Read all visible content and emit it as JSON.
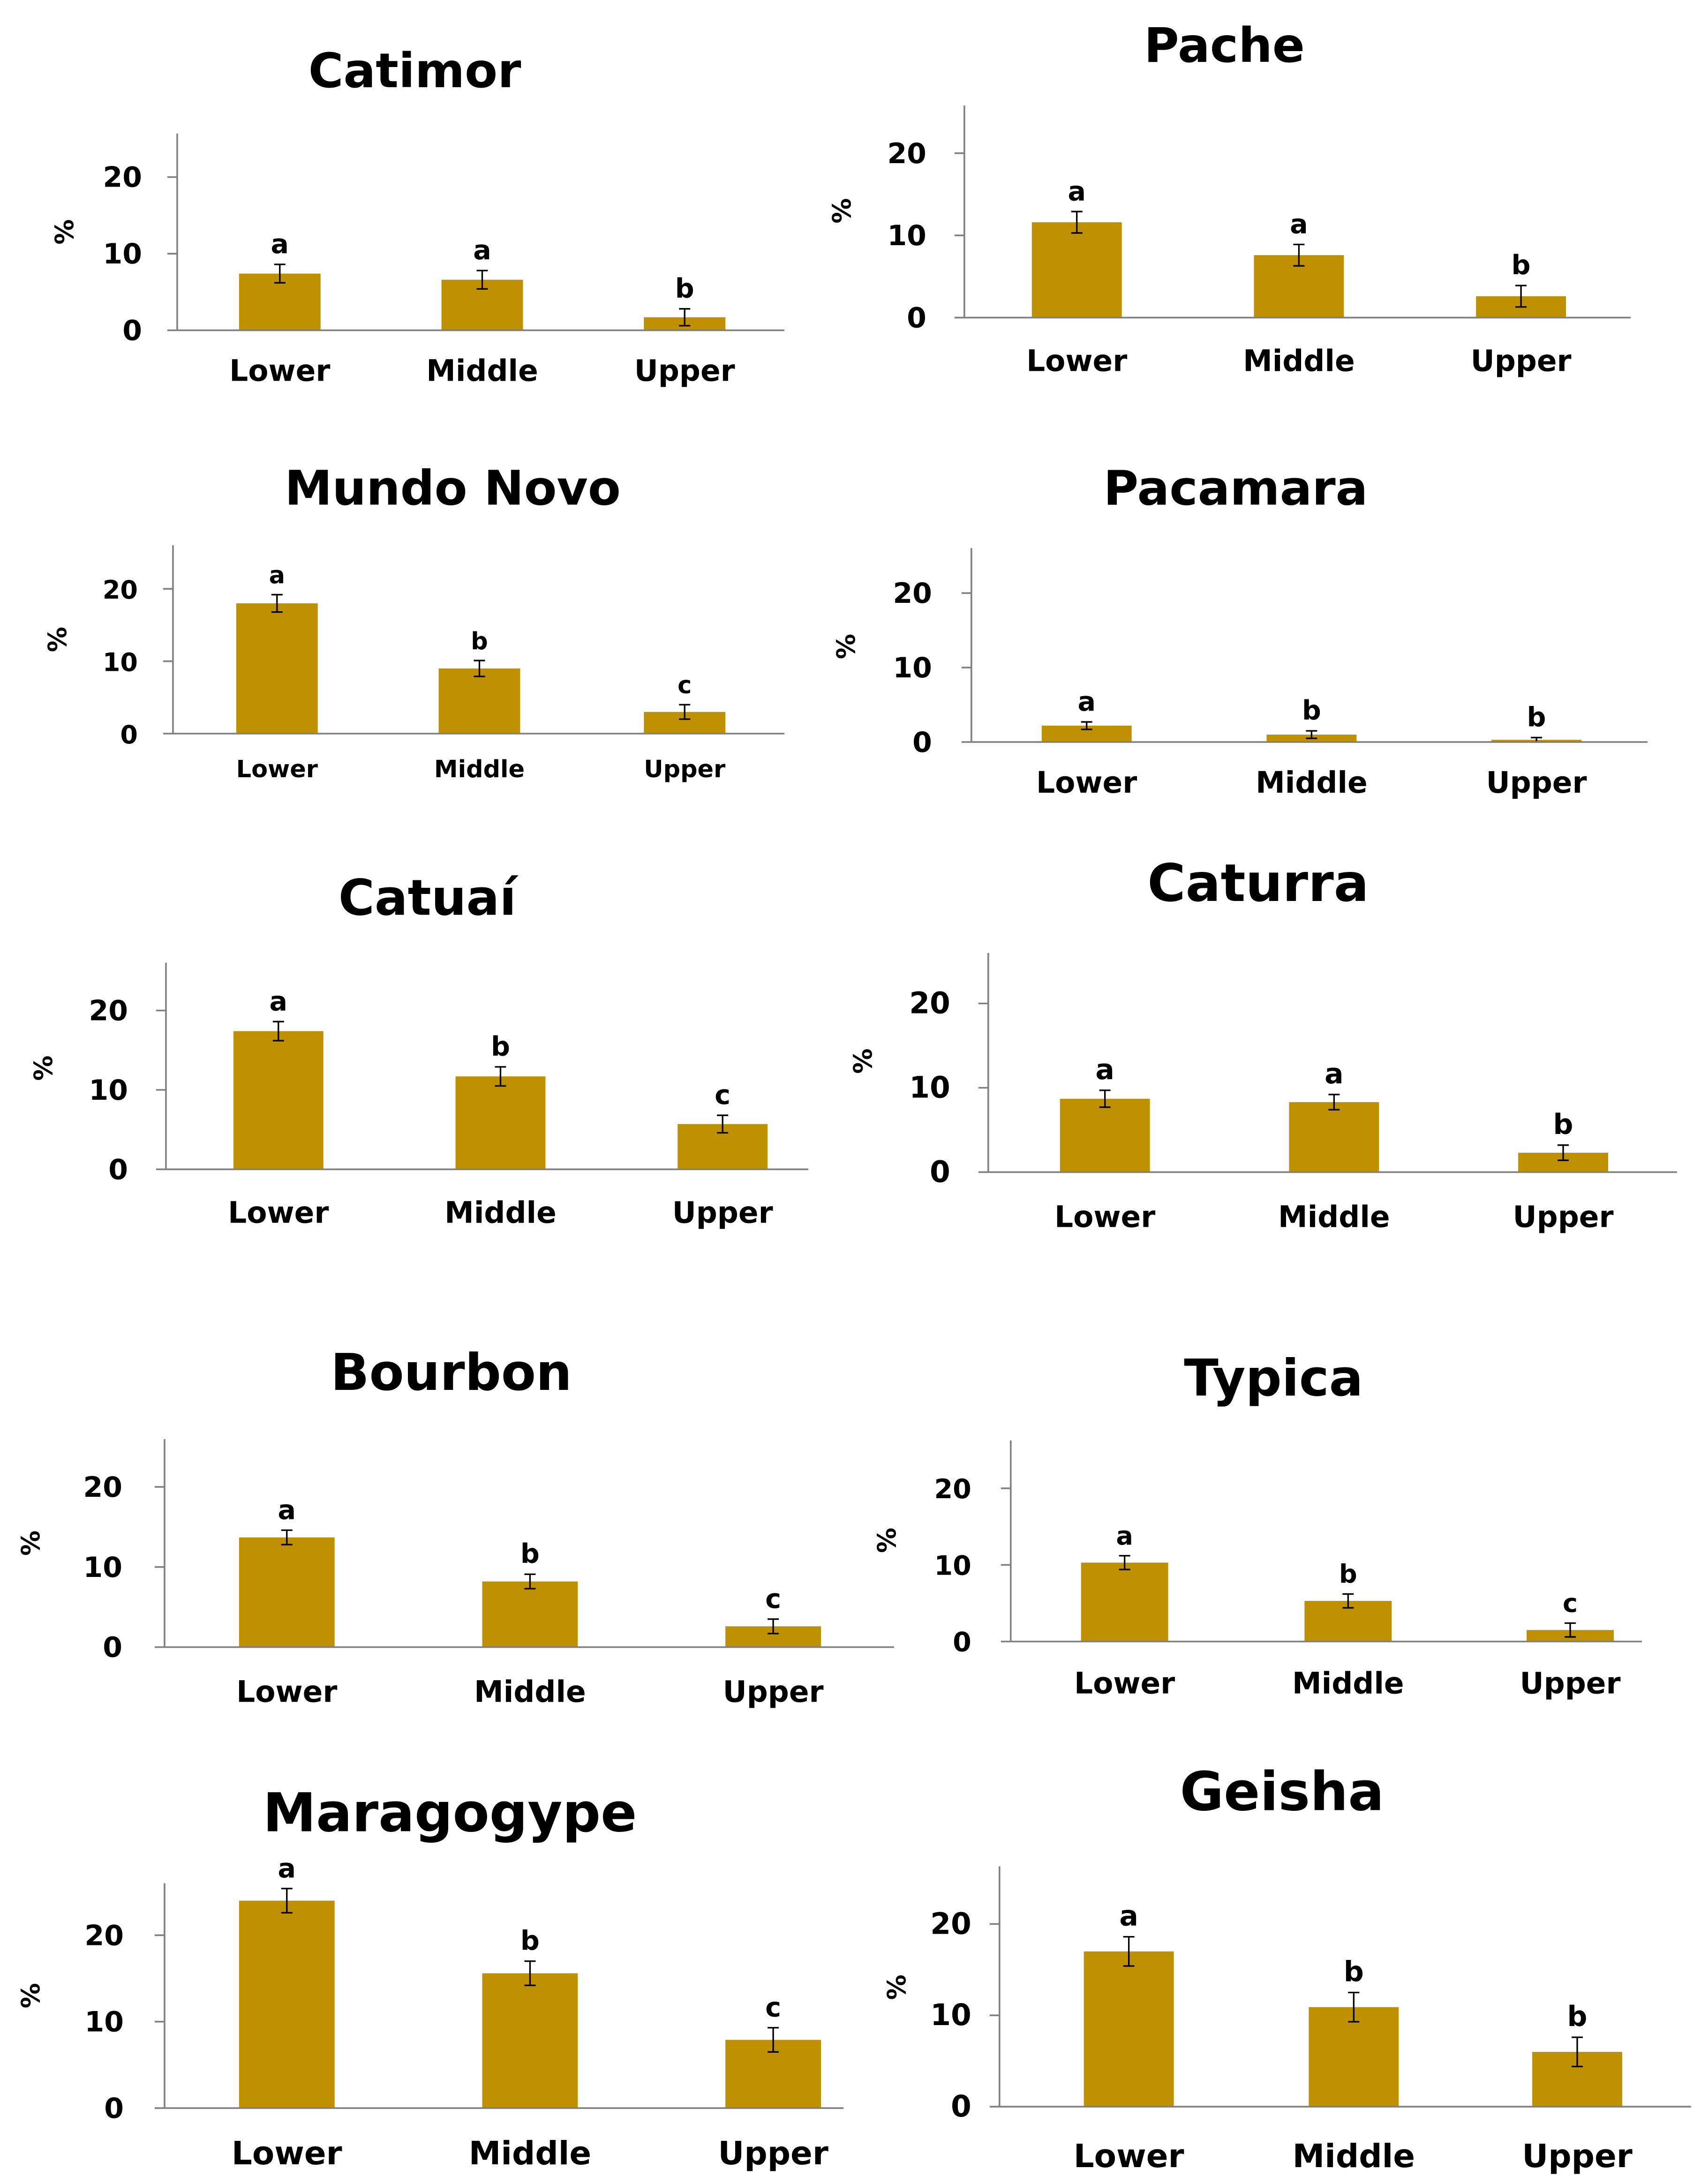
{
  "colors": {
    "bar": "#BF9000",
    "axis": "#808080",
    "text": "#000000",
    "error": "#000000"
  },
  "chart_data": [
    {
      "type": "bar",
      "title": "Catimor",
      "ylabel": "%",
      "ylim": [
        0,
        25
      ],
      "yticks": [
        0,
        10,
        20
      ],
      "categories": [
        "Lower",
        "Middle",
        "Upper"
      ],
      "values": [
        7.4,
        6.6,
        1.7
      ],
      "errors": [
        1.2,
        1.2,
        1.1
      ],
      "letters": [
        "a",
        "a",
        "b"
      ]
    },
    {
      "type": "bar",
      "title": "Pache",
      "ylabel": "%",
      "ylim": [
        0,
        25
      ],
      "yticks": [
        0,
        10,
        20
      ],
      "categories": [
        "Lower",
        "Middle",
        "Upper"
      ],
      "values": [
        11.6,
        7.6,
        2.6
      ],
      "errors": [
        1.3,
        1.3,
        1.3
      ],
      "letters": [
        "a",
        "a",
        "b"
      ]
    },
    {
      "type": "bar",
      "title": "Mundo Novo",
      "ylabel": "%",
      "ylim": [
        0,
        25
      ],
      "yticks": [
        0,
        10,
        20
      ],
      "categories": [
        "Lower",
        "Middle",
        "Upper"
      ],
      "values": [
        18.0,
        9.0,
        3.0
      ],
      "errors": [
        1.2,
        1.1,
        1.0
      ],
      "letters": [
        "a",
        "b",
        "c"
      ]
    },
    {
      "type": "bar",
      "title": "Pacamara",
      "ylabel": "%",
      "ylim": [
        0,
        25
      ],
      "yticks": [
        0,
        10,
        20
      ],
      "categories": [
        "Lower",
        "Middle",
        "Upper"
      ],
      "values": [
        2.2,
        1.0,
        0.3
      ],
      "errors": [
        0.5,
        0.5,
        0.3
      ],
      "letters": [
        "a",
        "b",
        "b"
      ]
    },
    {
      "type": "bar",
      "title": "Catuaí",
      "ylabel": "%",
      "ylim": [
        0,
        25
      ],
      "yticks": [
        0,
        10,
        20
      ],
      "categories": [
        "Lower",
        "Middle",
        "Upper"
      ],
      "values": [
        17.4,
        11.7,
        5.7
      ],
      "errors": [
        1.2,
        1.2,
        1.1
      ],
      "letters": [
        "a",
        "b",
        "c"
      ]
    },
    {
      "type": "bar",
      "title": "Caturra",
      "ylabel": "%",
      "ylim": [
        0,
        25
      ],
      "yticks": [
        0,
        10,
        20
      ],
      "categories": [
        "Lower",
        "Middle",
        "Upper"
      ],
      "values": [
        8.7,
        8.3,
        2.3
      ],
      "errors": [
        1.0,
        0.9,
        0.9
      ],
      "letters": [
        "a",
        "a",
        "b"
      ]
    },
    {
      "type": "bar",
      "title": "Bourbon",
      "ylabel": "%",
      "ylim": [
        0,
        25
      ],
      "yticks": [
        0,
        10,
        20
      ],
      "categories": [
        "Lower",
        "Middle",
        "Upper"
      ],
      "values": [
        13.7,
        8.2,
        2.6
      ],
      "errors": [
        0.9,
        0.9,
        0.9
      ],
      "letters": [
        "a",
        "b",
        "c"
      ]
    },
    {
      "type": "bar",
      "title": "Typica",
      "ylabel": "%",
      "ylim": [
        0,
        25
      ],
      "yticks": [
        0,
        10,
        20
      ],
      "categories": [
        "Lower",
        "Middle",
        "Upper"
      ],
      "values": [
        10.3,
        5.3,
        1.5
      ],
      "errors": [
        0.9,
        0.9,
        0.9
      ],
      "letters": [
        "a",
        "b",
        "c"
      ]
    },
    {
      "type": "bar",
      "title": "Maragogype",
      "ylabel": "%",
      "ylim": [
        0,
        25
      ],
      "yticks": [
        0,
        10,
        20
      ],
      "categories": [
        "Lower",
        "Middle",
        "Upper"
      ],
      "values": [
        24.0,
        15.6,
        7.9
      ],
      "errors": [
        1.4,
        1.4,
        1.4
      ],
      "letters": [
        "a",
        "b",
        "c"
      ]
    },
    {
      "type": "bar",
      "title": "Geisha",
      "ylabel": "%",
      "ylim": [
        0,
        25
      ],
      "yticks": [
        0,
        10,
        20
      ],
      "categories": [
        "Lower",
        "Middle",
        "Upper"
      ],
      "values": [
        17.0,
        10.9,
        6.0
      ],
      "errors": [
        1.6,
        1.6,
        1.6
      ],
      "letters": [
        "a",
        "b",
        "b"
      ]
    }
  ]
}
